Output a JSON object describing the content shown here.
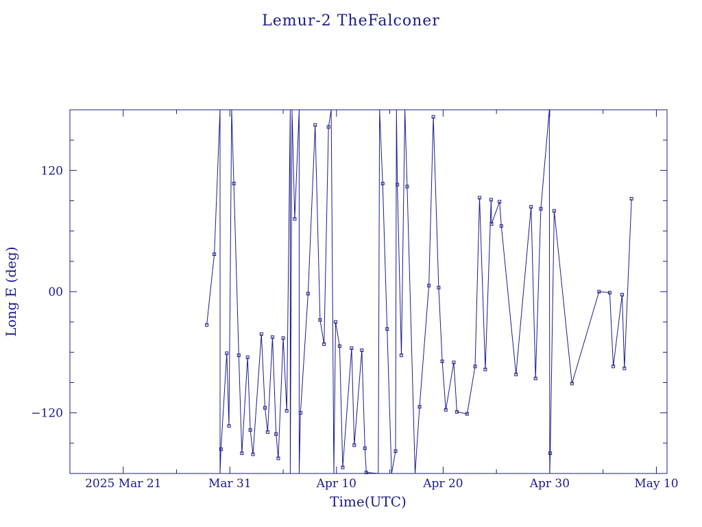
{
  "chart_data": {
    "type": "line",
    "title": "Lemur-2 TheFalconer",
    "xlabel": "Time(UTC)",
    "ylabel": "Long E (deg)",
    "x_tick_labels": [
      "2025 Mar 21",
      "Mar 31",
      "Apr 10",
      "Apr 20",
      "Apr 30",
      "May 10"
    ],
    "y_tick_labels": [
      "120",
      "00",
      "−120"
    ],
    "xlim": [
      "2025-03-16",
      "2025-05-11"
    ],
    "ylim": [
      -180,
      180
    ],
    "grid": false,
    "series": [
      {
        "marker": "square",
        "points": [
          [
            "2025-03-28T20:00",
            -33
          ],
          [
            "2025-03-29T13:00",
            37
          ],
          [
            "2025-03-30T02:00",
            180
          ],
          [
            "2025-03-30T02:00",
            -180
          ],
          [
            "2025-03-30T04:00",
            -156
          ],
          [
            "2025-03-30T17:00",
            -61
          ],
          [
            "2025-03-30T22:00",
            -133
          ],
          [
            "2025-03-31T04:00",
            180
          ],
          [
            "2025-03-31T09:00",
            107
          ],
          [
            "2025-03-31T20:00",
            -63
          ],
          [
            "2025-04-01T03:00",
            -160
          ],
          [
            "2025-04-01T16:00",
            -65
          ],
          [
            "2025-04-01T22:00",
            -137
          ],
          [
            "2025-04-02T04:00",
            -161
          ],
          [
            "2025-04-02T23:00",
            -42
          ],
          [
            "2025-04-03T07:00",
            -115
          ],
          [
            "2025-04-03T13:00",
            -139
          ],
          [
            "2025-04-04T00:00",
            -45
          ],
          [
            "2025-04-04T08:00",
            -141
          ],
          [
            "2025-04-04T13:00",
            -165
          ],
          [
            "2025-04-05T00:00",
            -46
          ],
          [
            "2025-04-05T08:00",
            -118
          ],
          [
            "2025-04-05T16:00",
            180
          ],
          [
            "2025-04-05T16:00",
            -180
          ],
          [
            "2025-04-05T20:00",
            180
          ],
          [
            "2025-04-06T02:00",
            72
          ],
          [
            "2025-04-06T12:00",
            180
          ],
          [
            "2025-04-06T12:00",
            -180
          ],
          [
            "2025-04-06T15:00",
            -120
          ],
          [
            "2025-04-07T08:00",
            -2
          ],
          [
            "2025-04-08T00:00",
            165
          ],
          [
            "2025-04-08T11:00",
            -28
          ],
          [
            "2025-04-08T20:00",
            -52
          ],
          [
            "2025-04-09T06:00",
            163
          ],
          [
            "2025-04-09T12:00",
            180
          ],
          [
            "2025-04-09T18:00",
            -180
          ],
          [
            "2025-04-09T22:00",
            -30
          ],
          [
            "2025-04-10T07:00",
            -54
          ],
          [
            "2025-04-10T14:00",
            -174
          ],
          [
            "2025-04-11T10:00",
            -56
          ],
          [
            "2025-04-11T16:00",
            -152
          ],
          [
            "2025-04-12T09:00",
            -58
          ],
          [
            "2025-04-12T16:00",
            -155
          ],
          [
            "2025-04-12T19:00",
            -179
          ],
          [
            "2025-04-13T22:00",
            -180
          ],
          [
            "2025-04-14T01:00",
            180
          ],
          [
            "2025-04-14T08:00",
            107
          ],
          [
            "2025-04-14T18:00",
            -37
          ],
          [
            "2025-04-15T04:00",
            -180
          ],
          [
            "2025-04-15T13:00",
            -158
          ],
          [
            "2025-04-15T15:00",
            180
          ],
          [
            "2025-04-15T17:00",
            106
          ],
          [
            "2025-04-16T02:00",
            -63
          ],
          [
            "2025-04-16T10:00",
            180
          ],
          [
            "2025-04-16T15:00",
            104
          ],
          [
            "2025-04-17T09:00",
            -180
          ],
          [
            "2025-04-17T19:00",
            -114
          ],
          [
            "2025-04-18T16:00",
            6
          ],
          [
            "2025-04-19T02:00",
            173
          ],
          [
            "2025-04-19T14:00",
            4
          ],
          [
            "2025-04-19T22:00",
            -69
          ],
          [
            "2025-04-20T06:00",
            -117
          ],
          [
            "2025-04-21T00:00",
            -70
          ],
          [
            "2025-04-21T07:00",
            -119
          ],
          [
            "2025-04-22T06:00",
            -121
          ],
          [
            "2025-04-23T00:00",
            -74
          ],
          [
            "2025-04-23T10:00",
            93
          ],
          [
            "2025-04-23T23:00",
            -77
          ],
          [
            "2025-04-24T12:00",
            91
          ],
          [
            "2025-04-24T13:00",
            67
          ],
          [
            "2025-04-25T07:00",
            89
          ],
          [
            "2025-04-25T11:00",
            65
          ],
          [
            "2025-04-26T20:00",
            -82
          ],
          [
            "2025-04-28T06:00",
            84
          ],
          [
            "2025-04-28T16:00",
            -86
          ],
          [
            "2025-04-29T04:00",
            82
          ],
          [
            "2025-04-29T23:00",
            180
          ],
          [
            "2025-04-30T00:00",
            -180
          ],
          [
            "2025-04-30T01:00",
            -160
          ],
          [
            "2025-04-30T10:00",
            80
          ],
          [
            "2025-05-02T02:00",
            -91
          ],
          [
            "2025-05-04T15:00",
            0
          ],
          [
            "2025-05-05T15:00",
            -1
          ],
          [
            "2025-05-05T23:00",
            -74
          ],
          [
            "2025-05-06T19:00",
            -3
          ],
          [
            "2025-05-07T00:00",
            -76
          ],
          [
            "2025-05-07T16:00",
            92
          ]
        ]
      }
    ]
  },
  "colors": {
    "axis": "#1a1a8c",
    "line": "#1a1a8c",
    "text": "#1a1a8c"
  }
}
